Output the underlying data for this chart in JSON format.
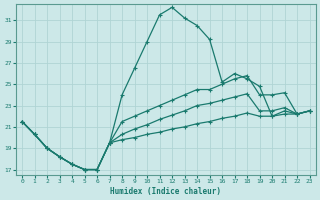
{
  "xlabel": "Humidex (Indice chaleur)",
  "bg_color": "#cce8e8",
  "grid_color": "#b0d4d4",
  "line_color": "#1a7a6e",
  "xlim": [
    -0.5,
    23.5
  ],
  "ylim": [
    16.5,
    32.5
  ],
  "xticks": [
    0,
    1,
    2,
    3,
    4,
    5,
    6,
    7,
    8,
    9,
    10,
    11,
    12,
    13,
    14,
    15,
    16,
    17,
    18,
    19,
    20,
    21,
    22,
    23
  ],
  "yticks": [
    17,
    19,
    21,
    23,
    25,
    27,
    29,
    31
  ],
  "line1_x": [
    0,
    1,
    2,
    3,
    4,
    5,
    6,
    7,
    8,
    9,
    10,
    11,
    12,
    13,
    14,
    15,
    16,
    17,
    18,
    19,
    20,
    21,
    22,
    23
  ],
  "line1_y": [
    21.5,
    20.3,
    19.0,
    18.2,
    17.5,
    17.0,
    17.0,
    19.5,
    24.0,
    26.5,
    29.0,
    31.5,
    32.2,
    31.2,
    30.5,
    29.2,
    25.2,
    26.0,
    25.5,
    24.8,
    22.0,
    22.5,
    22.2,
    22.5
  ],
  "line2_x": [
    0,
    1,
    2,
    3,
    4,
    5,
    6,
    7,
    8,
    9,
    10,
    11,
    12,
    13,
    14,
    15,
    16,
    17,
    18,
    19,
    20,
    21,
    22,
    23
  ],
  "line2_y": [
    21.5,
    20.3,
    19.0,
    18.2,
    17.5,
    17.0,
    17.0,
    19.5,
    21.5,
    22.0,
    22.5,
    23.0,
    23.5,
    24.0,
    24.5,
    24.5,
    25.0,
    25.5,
    25.8,
    24.0,
    24.0,
    24.2,
    22.2,
    22.5
  ],
  "line3_x": [
    0,
    1,
    2,
    3,
    4,
    5,
    6,
    7,
    8,
    9,
    10,
    11,
    12,
    13,
    14,
    15,
    16,
    17,
    18,
    19,
    20,
    21,
    22,
    23
  ],
  "line3_y": [
    21.5,
    20.3,
    19.0,
    18.2,
    17.5,
    17.0,
    17.0,
    19.5,
    20.3,
    20.8,
    21.2,
    21.7,
    22.1,
    22.5,
    23.0,
    23.2,
    23.5,
    23.8,
    24.1,
    22.5,
    22.5,
    22.8,
    22.2,
    22.5
  ],
  "line4_x": [
    0,
    1,
    2,
    3,
    4,
    5,
    6,
    7,
    8,
    9,
    10,
    11,
    12,
    13,
    14,
    15,
    16,
    17,
    18,
    19,
    20,
    21,
    22,
    23
  ],
  "line4_y": [
    21.5,
    20.3,
    19.0,
    18.2,
    17.5,
    17.0,
    17.0,
    19.5,
    19.8,
    20.0,
    20.3,
    20.5,
    20.8,
    21.0,
    21.3,
    21.5,
    21.8,
    22.0,
    22.3,
    22.0,
    22.0,
    22.2,
    22.2,
    22.5
  ]
}
